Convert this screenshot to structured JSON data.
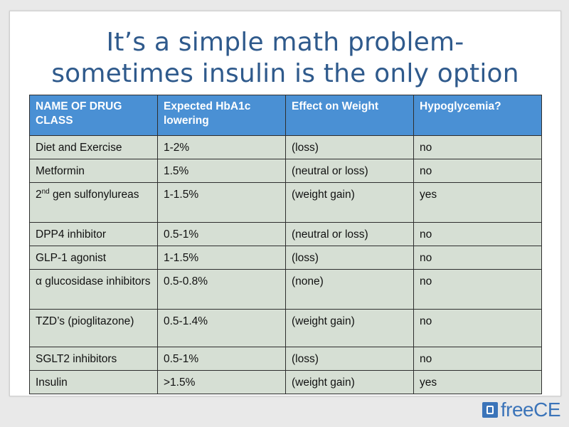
{
  "slide": {
    "title_line1": "It’s a simple math problem-",
    "title_line2": "sometimes insulin is the only option"
  },
  "table": {
    "headers": [
      "NAME OF DRUG CLASS",
      "Expected HbA1c lowering",
      "Effect on Weight",
      "Hypoglycemia?"
    ],
    "rows": [
      [
        "Diet and Exercise",
        "1-2%",
        "(loss)",
        "no"
      ],
      [
        "Metformin",
        "1.5%",
        "(neutral or loss)",
        "no"
      ],
      [
        "2nd gen sulfonylureas",
        "1-1.5%",
        "(weight gain)",
        "yes"
      ],
      [
        "DPP4 inhibitor",
        "0.5-1%",
        "(neutral or loss)",
        "no"
      ],
      [
        "GLP-1 agonist",
        "1-1.5%",
        "(loss)",
        "no"
      ],
      [
        "α glucosidase inhibitors",
        "0.5-0.8%",
        "(none)",
        "no"
      ],
      [
        "TZD’s (pioglitazone)",
        "0.5-1.4%",
        "(weight gain)",
        "no"
      ],
      [
        "SGLT2 inhibitors",
        "0.5-1%",
        "(loss)",
        "no"
      ],
      [
        "Insulin",
        ">1.5%",
        "(weight gain)",
        "yes"
      ]
    ],
    "row3_prefix": "2",
    "row3_sup": "nd",
    "row3_rest": " gen sulfonylureas"
  },
  "logo": {
    "text": "freeCE",
    "icon": "document-icon"
  },
  "colors": {
    "header_bg": "#4a90d4",
    "cell_bg": "#d6dfd4",
    "title": "#2f5a8c"
  }
}
